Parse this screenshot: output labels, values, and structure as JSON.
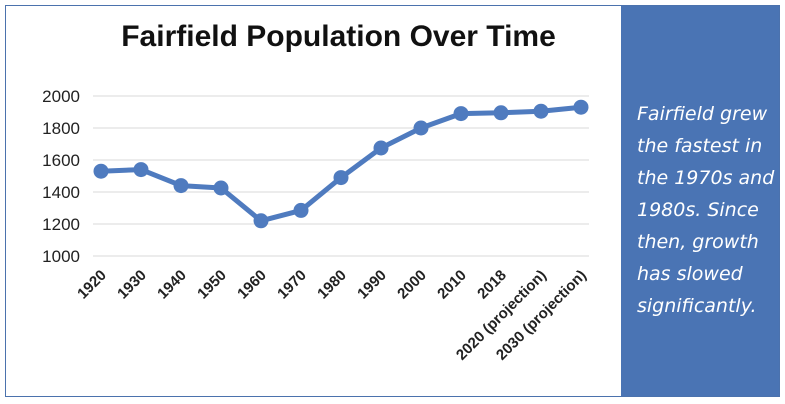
{
  "note": "Fairfield grew the fastest in the 1970s and 1980s. Since then, growth has slowed significantly.",
  "colors": {
    "line": "#4f7bbf",
    "side_panel": "#4a74b4",
    "grid": "#d9d9d9",
    "text": "#222222"
  },
  "chart_data": {
    "type": "line",
    "title": "Fairfield Population Over Time",
    "xlabel": "",
    "ylabel": "",
    "categories": [
      "1920",
      "1930",
      "1940",
      "1950",
      "1960",
      "1970",
      "1980",
      "1990",
      "2000",
      "2010",
      "2018",
      "2020 (projection)",
      "2030 (projection)"
    ],
    "series": [
      {
        "values": [
          1530,
          1540,
          1440,
          1425,
          1220,
          1285,
          1490,
          1675,
          1800,
          1890,
          1895,
          1905,
          1930
        ]
      }
    ],
    "ylim": [
      1000,
      2000
    ],
    "yticks": [
      1000,
      1200,
      1400,
      1600,
      1800,
      2000
    ],
    "grid": true,
    "legend": "none",
    "markers": true
  }
}
